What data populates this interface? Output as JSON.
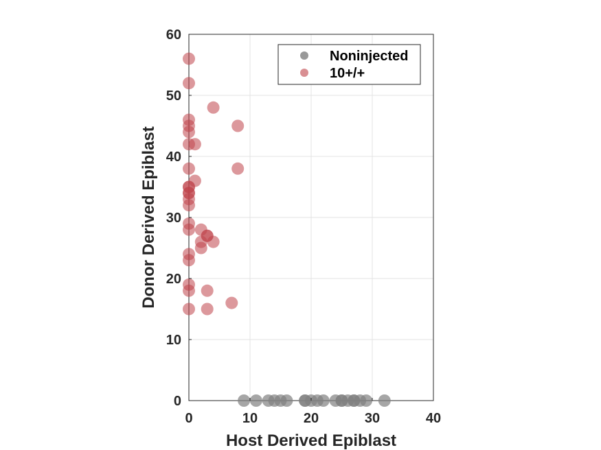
{
  "chart_data": {
    "type": "scatter",
    "xlabel": "Host Derived Epiblast",
    "ylabel": "Donor Derived Epiblast",
    "xlim": [
      0,
      40
    ],
    "ylim": [
      0,
      60
    ],
    "xticks": [
      0,
      10,
      20,
      30,
      40
    ],
    "yticks": [
      0,
      10,
      20,
      30,
      40,
      50,
      60
    ],
    "grid": true,
    "legend_position": "top-right",
    "series": [
      {
        "name": "Noninjected",
        "color": "#808080",
        "points": [
          [
            9,
            0
          ],
          [
            11,
            0
          ],
          [
            13,
            0
          ],
          [
            14,
            0
          ],
          [
            15,
            0
          ],
          [
            16,
            0
          ],
          [
            19,
            0
          ],
          [
            19,
            0
          ],
          [
            20,
            0
          ],
          [
            21,
            0
          ],
          [
            22,
            0
          ],
          [
            24,
            0
          ],
          [
            25,
            0
          ],
          [
            25,
            0
          ],
          [
            26,
            0
          ],
          [
            27,
            0
          ],
          [
            27,
            0
          ],
          [
            28,
            0
          ],
          [
            29,
            0
          ],
          [
            32,
            0
          ]
        ]
      },
      {
        "name": "10+/+",
        "color": "#C0444B",
        "points": [
          [
            0,
            56
          ],
          [
            0,
            52
          ],
          [
            0,
            46
          ],
          [
            0,
            45
          ],
          [
            0,
            44
          ],
          [
            0,
            42
          ],
          [
            0,
            38
          ],
          [
            0,
            35
          ],
          [
            0,
            35
          ],
          [
            0,
            34
          ],
          [
            0,
            34
          ],
          [
            0,
            33
          ],
          [
            0,
            32
          ],
          [
            0,
            29
          ],
          [
            0,
            28
          ],
          [
            0,
            24
          ],
          [
            0,
            23
          ],
          [
            0,
            19
          ],
          [
            0,
            18
          ],
          [
            0,
            15
          ],
          [
            1,
            42
          ],
          [
            1,
            36
          ],
          [
            2,
            28
          ],
          [
            2,
            26
          ],
          [
            2,
            25
          ],
          [
            3,
            27
          ],
          [
            3,
            27
          ],
          [
            3,
            18
          ],
          [
            3,
            15
          ],
          [
            4,
            48
          ],
          [
            4,
            26
          ],
          [
            7,
            16
          ],
          [
            8,
            45
          ],
          [
            8,
            38
          ]
        ]
      }
    ]
  }
}
